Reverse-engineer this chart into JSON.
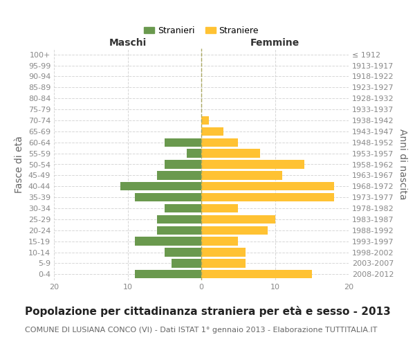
{
  "age_groups": [
    "0-4",
    "5-9",
    "10-14",
    "15-19",
    "20-24",
    "25-29",
    "30-34",
    "35-39",
    "40-44",
    "45-49",
    "50-54",
    "55-59",
    "60-64",
    "65-69",
    "70-74",
    "75-79",
    "80-84",
    "85-89",
    "90-94",
    "95-99",
    "100+"
  ],
  "birth_years": [
    "2008-2012",
    "2003-2007",
    "1998-2002",
    "1993-1997",
    "1988-1992",
    "1983-1987",
    "1978-1982",
    "1973-1977",
    "1968-1972",
    "1963-1967",
    "1958-1962",
    "1953-1957",
    "1948-1952",
    "1943-1947",
    "1938-1942",
    "1933-1937",
    "1928-1932",
    "1923-1927",
    "1918-1922",
    "1913-1917",
    "≤ 1912"
  ],
  "maschi": [
    9,
    4,
    5,
    9,
    6,
    6,
    5,
    9,
    11,
    6,
    5,
    2,
    5,
    0,
    0,
    0,
    0,
    0,
    0,
    0,
    0
  ],
  "femmine": [
    15,
    6,
    6,
    5,
    9,
    10,
    5,
    18,
    18,
    11,
    14,
    8,
    5,
    3,
    1,
    0,
    0,
    0,
    0,
    0,
    0
  ],
  "maschi_color": "#6a994e",
  "femmine_color": "#ffc233",
  "background_color": "#ffffff",
  "grid_color": "#cccccc",
  "title": "Popolazione per cittadinanza straniera per età e sesso - 2013",
  "subtitle": "COMUNE DI LUSIANA CONCO (VI) - Dati ISTAT 1° gennaio 2013 - Elaborazione TUTTITALIA.IT",
  "xlabel_left": "Maschi",
  "xlabel_right": "Femmine",
  "ylabel_left": "Fasce di età",
  "ylabel_right": "Anni di nascita",
  "legend_maschi": "Stranieri",
  "legend_femmine": "Straniere",
  "xlim": 20,
  "title_fontsize": 11,
  "subtitle_fontsize": 8,
  "tick_fontsize": 8,
  "label_fontsize": 10
}
